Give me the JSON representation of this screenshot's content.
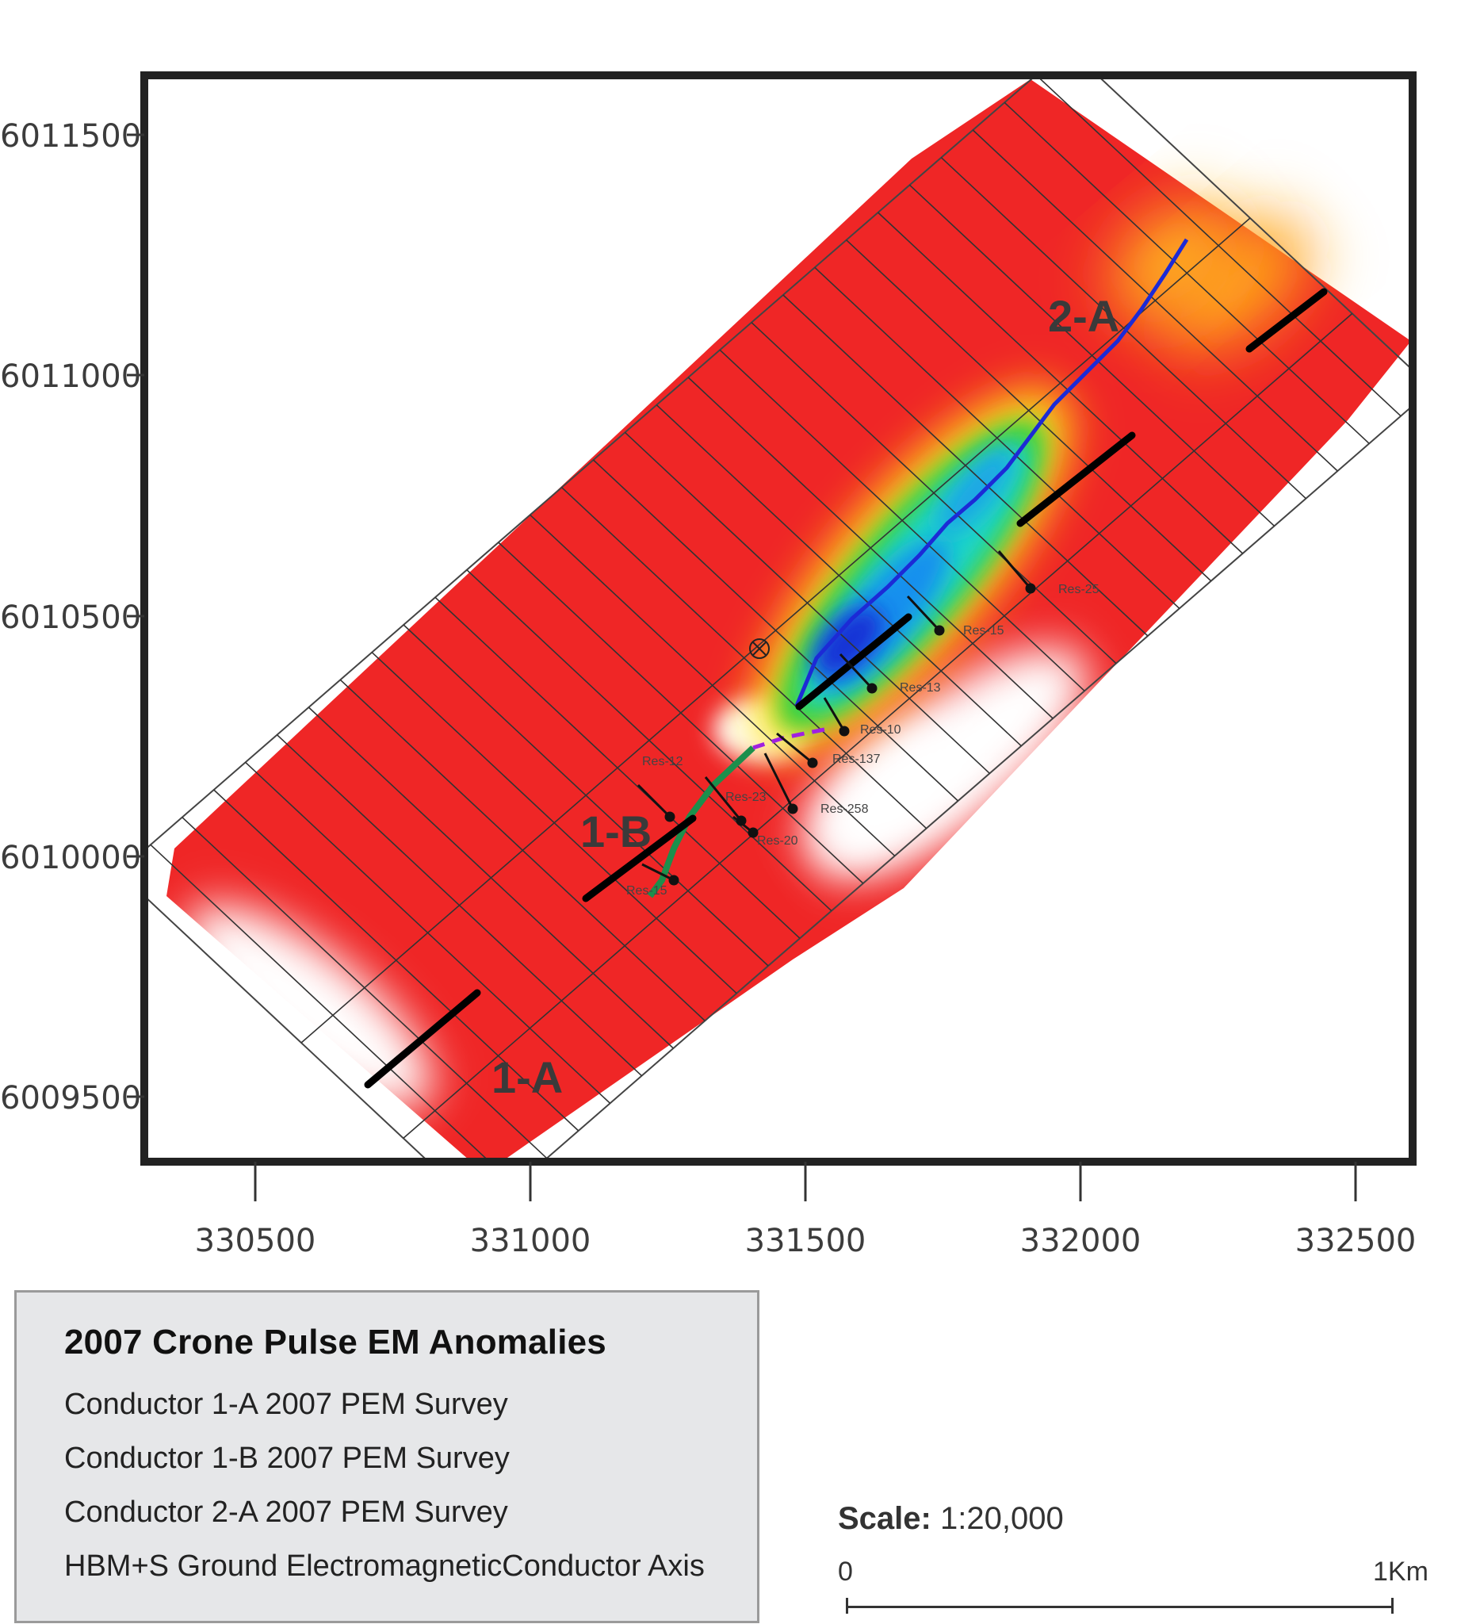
{
  "map": {
    "x_axis": {
      "ticks": [
        "330500",
        "331000",
        "331500",
        "332000",
        "332500"
      ]
    },
    "y_axis": {
      "ticks": [
        "6011500",
        "6011000",
        "6010500",
        "6010000",
        "6009500"
      ]
    },
    "labels": {
      "c2a": "2-A",
      "c1b": "1-B",
      "c1a": "1-A"
    },
    "drill_holes": [
      "Res-25",
      "Res-15",
      "Res-13",
      "Res-10",
      "Res-137",
      "Res-12",
      "Res-23",
      "Res-258",
      "Res-20",
      "Res-15"
    ],
    "colors": {
      "high": "#ee2222",
      "low": "#1538d8",
      "conductor": "#000000",
      "axis_line": "#1c2ad6",
      "dashed_axis": "#a020e0",
      "frame": "#222222"
    }
  },
  "legend": {
    "title": "2007 Crone Pulse EM Anomalies",
    "items": [
      "Conductor 1-A 2007 PEM Survey",
      "Conductor 1-B 2007 PEM Survey",
      "Conductor 2-A 2007 PEM Survey",
      "HBM+S Ground ElectromagneticConductor Axis"
    ]
  },
  "scale": {
    "label": "Scale:",
    "value": "1:20,000",
    "start": "0",
    "end": "1Km"
  }
}
